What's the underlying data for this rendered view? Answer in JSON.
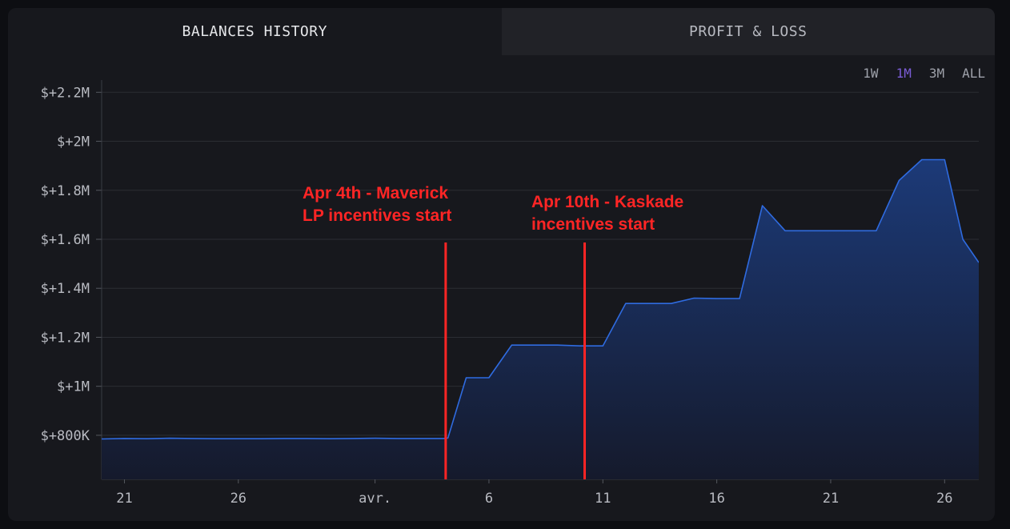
{
  "tabs": [
    {
      "label": "BALANCES HISTORY",
      "active": true
    },
    {
      "label": "PROFIT & LOSS",
      "active": false
    }
  ],
  "ranges": [
    {
      "label": "1W",
      "active": false
    },
    {
      "label": "1M",
      "active": true
    },
    {
      "label": "3M",
      "active": false
    },
    {
      "label": "ALL",
      "active": false
    }
  ],
  "colors": {
    "line": "#2f6be0",
    "fill_top": "#1c3a78",
    "fill_bottom": "#151a2c",
    "grid": "#2b2d33",
    "annotation": "#ff2525"
  },
  "chart_data": {
    "type": "area",
    "title": "Balances History",
    "xlabel": "",
    "ylabel": "",
    "grid": true,
    "x_unit": "days since Mar 20",
    "xlim": [
      0,
      38.5
    ],
    "ylim": [
      620000,
      2250000
    ],
    "yticks": [
      {
        "value": 800000,
        "label": "$+800K"
      },
      {
        "value": 1000000,
        "label": "$+1M"
      },
      {
        "value": 1200000,
        "label": "$+1.2M"
      },
      {
        "value": 1400000,
        "label": "$+1.4M"
      },
      {
        "value": 1600000,
        "label": "$+1.6M"
      },
      {
        "value": 1800000,
        "label": "$+1.8M"
      },
      {
        "value": 2000000,
        "label": "$+2M"
      },
      {
        "value": 2200000,
        "label": "$+2.2M"
      }
    ],
    "xticks": [
      {
        "value": 1,
        "label": "21"
      },
      {
        "value": 6,
        "label": "26"
      },
      {
        "value": 12,
        "label": "avr."
      },
      {
        "value": 17,
        "label": "6"
      },
      {
        "value": 22,
        "label": "11"
      },
      {
        "value": 27,
        "label": "16"
      },
      {
        "value": 32,
        "label": "21"
      },
      {
        "value": 37,
        "label": "26"
      }
    ],
    "series": [
      {
        "name": "Balance",
        "x": [
          0,
          1,
          2,
          3,
          4,
          5,
          6,
          7,
          8,
          9,
          10,
          11,
          12,
          13,
          14,
          15,
          15.2,
          16,
          16.5,
          17,
          18,
          19,
          20,
          21,
          22,
          23,
          24,
          25,
          26,
          27,
          28,
          29,
          30,
          31,
          32,
          33,
          34,
          35,
          36,
          37,
          37.8,
          38.5
        ],
        "y": [
          785000,
          787000,
          786000,
          788000,
          787000,
          786000,
          786000,
          786000,
          787000,
          787000,
          786000,
          787000,
          788000,
          787000,
          787000,
          787000,
          789000,
          1035000,
          1035000,
          1035000,
          1168000,
          1168000,
          1168000,
          1165000,
          1165000,
          1338000,
          1338000,
          1338000,
          1360000,
          1358000,
          1358000,
          1737000,
          1635000,
          1635000,
          1635000,
          1635000,
          1635000,
          1840000,
          1925000,
          1925000,
          1600000,
          1505000
        ]
      }
    ],
    "annotations": [
      {
        "x": 15.1,
        "lines": [
          "Apr 4th - Maverick",
          "LP incentives start"
        ]
      },
      {
        "x": 21.2,
        "lines": [
          "Apr 10th - Kaskade",
          "incentives start"
        ]
      }
    ]
  }
}
